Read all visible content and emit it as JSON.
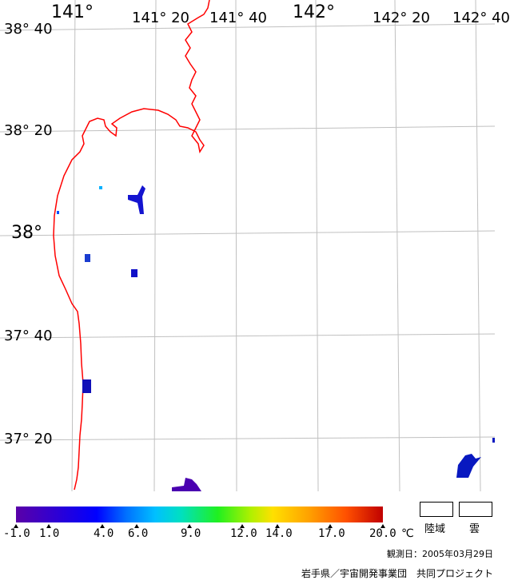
{
  "map": {
    "lon_labels": [
      {
        "text": "141°",
        "style": "big"
      },
      {
        "text": "141° 20",
        "style": "small"
      },
      {
        "text": "141° 40",
        "style": "small"
      },
      {
        "text": "142°",
        "style": "big"
      },
      {
        "text": "142° 20",
        "style": "small"
      },
      {
        "text": "142° 40",
        "style": "small"
      }
    ],
    "lat_labels": [
      {
        "text": "38° 40"
      },
      {
        "text": "38° 20"
      },
      {
        "text": "38°"
      },
      {
        "text": "37° 40"
      },
      {
        "text": "37° 20"
      }
    ],
    "coastline_color": "#ff0000",
    "grid_color": "#c0c0c0"
  },
  "legend": {
    "colorbar_ticks": [
      "-1.0",
      "1.0",
      "4.0",
      "6.0",
      "9.0",
      "12.0",
      "14.0",
      "17.0",
      "20.0"
    ],
    "unit": "℃",
    "land_label": "陸域",
    "cloud_label": "雲"
  },
  "observation": "観測日：2005年03月29日",
  "credit": "岩手県／宇宙開発事業団　共同プロジェクト"
}
